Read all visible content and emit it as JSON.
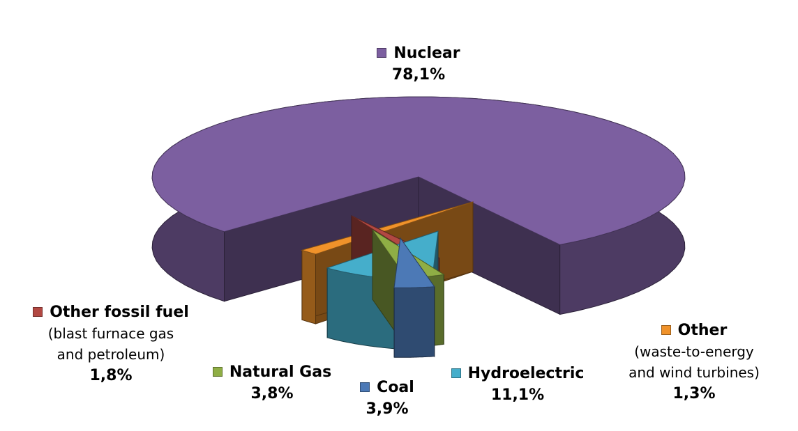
{
  "chart_data": {
    "type": "pie",
    "title": "",
    "style": "3d-exploded",
    "legend": "inline",
    "slices": [
      {
        "key": "nuclear",
        "label": "Nuclear",
        "note": "",
        "value": 78.1,
        "value_label": "78,1%",
        "color": "#7C5FA0"
      },
      {
        "key": "other",
        "label": "Other",
        "note": "(waste-to-energy and wind turbines)",
        "note_lines": [
          "(waste-to-energy",
          "and wind turbines)"
        ],
        "value": 1.3,
        "value_label": "1,3%",
        "color": "#F0922A"
      },
      {
        "key": "hydro",
        "label": "Hydroelectric",
        "note": "",
        "value": 11.1,
        "value_label": "11,1%",
        "color": "#45AECB"
      },
      {
        "key": "coal",
        "label": "Coal",
        "note": "",
        "value": 3.9,
        "value_label": "3,9%",
        "color": "#4C79B6"
      },
      {
        "key": "gas",
        "label": "Natural Gas",
        "note": "",
        "value": 3.8,
        "value_label": "3,8%",
        "color": "#8FAE45"
      },
      {
        "key": "fossil",
        "label": "Other fossil fuel",
        "note": "(blast furnace gas and petroleum)",
        "note_lines": [
          "(blast furnace gas",
          "and petroleum)"
        ],
        "value": 1.8,
        "value_label": "1,8%",
        "color": "#B24842"
      }
    ]
  }
}
